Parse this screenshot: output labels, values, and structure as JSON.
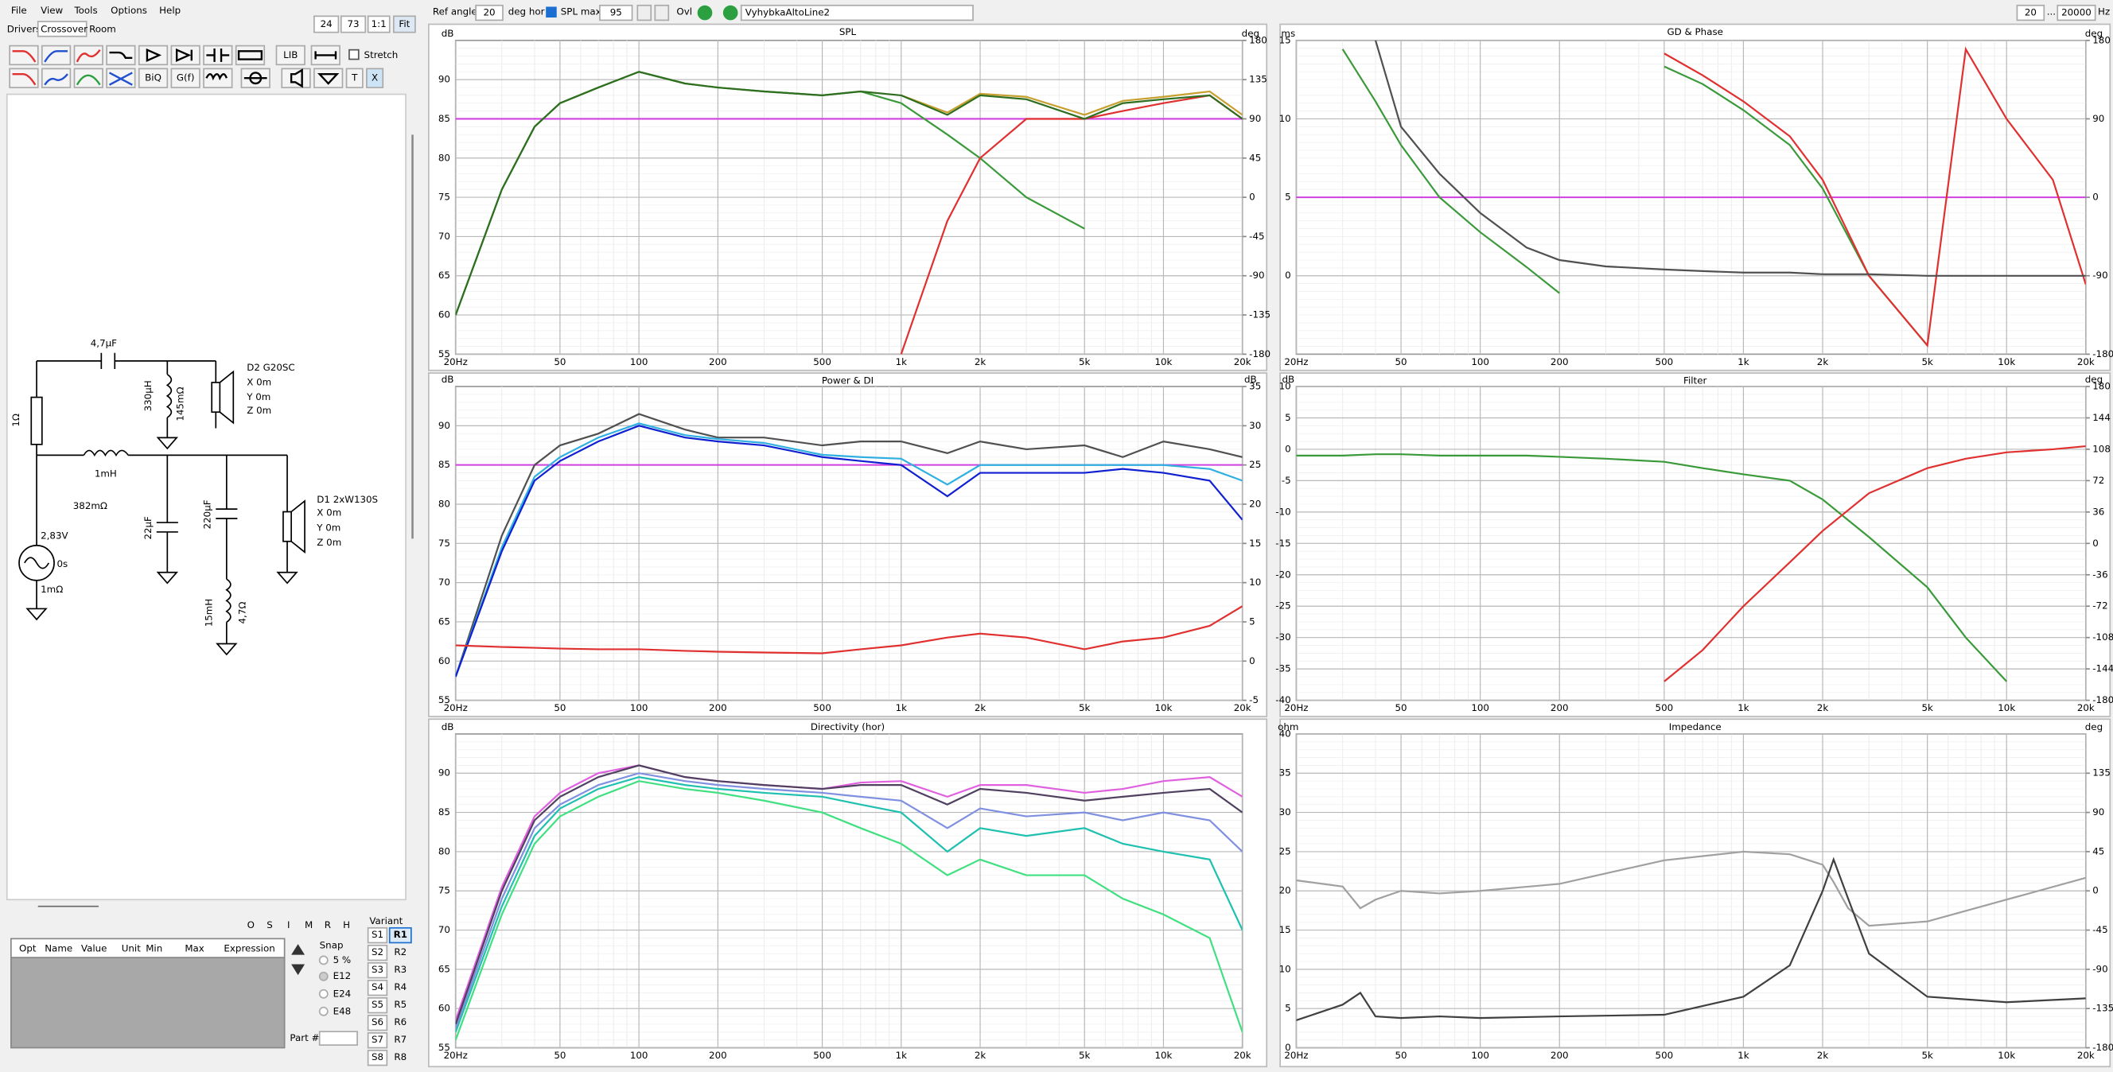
{
  "menu": [
    "File",
    "View",
    "Tools",
    "Options",
    "Help"
  ],
  "tabs": [
    "Drivers",
    "Crossover",
    "Room"
  ],
  "view_controls": [
    "24",
    "73",
    "1:1",
    "Fit"
  ],
  "settings": {
    "ref_angle_label": "Ref angle",
    "ref_angle": "20",
    "deg_hor": "deg hor",
    "spl_max_label": "SPL max",
    "spl_max": "95",
    "ovl": "Ovl",
    "project": "VyhybkaAltoLine2",
    "f_min": "20",
    "range_sep": "...",
    "f_max": "20000",
    "unit": "Hz"
  },
  "toolbar": {
    "lib": "LIB",
    "stretch": "Stretch",
    "biq": "BiQ",
    "gf": "G(f)",
    "t": "T",
    "x": "X"
  },
  "schematic": {
    "c1": "4,7µF",
    "d2": {
      "name": "D2 G20SC",
      "x": "X 0m",
      "y": "Y 0m",
      "z": "Z 0m"
    },
    "l1": "330µH",
    "l1_r": "145mΩ",
    "r1": "1Ω",
    "l2": "1mH",
    "l2_r": "382mΩ",
    "c2": "22µF",
    "c3": "220µF",
    "d1": {
      "name": "D1 2xW130S",
      "x": "X 0m",
      "y": "Y 0m",
      "z": "Z 0m"
    },
    "source_v": "2,83V",
    "source_t": "0s",
    "source_r": "1mΩ",
    "l3": "15mH",
    "l3_r": "4,7Ω"
  },
  "optimizer": {
    "buttons": [
      "O",
      "S",
      "I",
      "M",
      "R",
      "H"
    ],
    "columns": [
      "Opt",
      "Name",
      "Value",
      "Unit",
      "Min",
      "Max",
      "Expression"
    ],
    "snap": "Snap",
    "snap_options": [
      "5 %",
      "E12",
      "E24",
      "E48"
    ],
    "part": "Part #"
  },
  "variants": {
    "title": "Variant",
    "s": [
      "S1",
      "S2",
      "S3",
      "S4",
      "S5",
      "S6",
      "S7",
      "S8"
    ],
    "r": [
      "R1",
      "R2",
      "R3",
      "R4",
      "R5",
      "R6",
      "R7",
      "R8"
    ]
  },
  "charts": [
    {
      "type": "line",
      "title": "SPL",
      "y_label": "dB",
      "y2_label": "deg",
      "log_x": true,
      "xlim": [
        20,
        20000
      ],
      "xticks": [
        {
          "value": 20,
          "label": "20Hz"
        },
        50,
        100,
        200,
        500,
        {
          "value": 1000,
          "label": "1k"
        },
        {
          "value": 2000,
          "label": "2k"
        },
        {
          "value": 5000,
          "label": "5k"
        },
        {
          "value": 10000,
          "label": "10k"
        },
        {
          "value": 20000,
          "label": "20k"
        }
      ],
      "ylim": [
        55,
        95
      ],
      "yticks": [
        55,
        60,
        65,
        70,
        75,
        80,
        85,
        90
      ],
      "y2lim": [
        -180,
        180
      ],
      "y2ticks": [
        -180,
        -135,
        -90,
        -45,
        0,
        45,
        90,
        135,
        180
      ],
      "reference": {
        "value": 85,
        "color": "#d040e0"
      },
      "x": [
        20,
        30,
        40,
        50,
        70,
        100,
        150,
        200,
        300,
        500,
        700,
        1000,
        1500,
        2000,
        3000,
        5000,
        7000,
        10000,
        15000,
        20000
      ],
      "series": [
        {
          "color": "#3a9a3a",
          "values": [
            60,
            76,
            84,
            87,
            89,
            91,
            89.5,
            89,
            88.5,
            88,
            88.5,
            87,
            83,
            80,
            75,
            71,
            null,
            null,
            null,
            null
          ]
        },
        {
          "color": "#e03030",
          "values": [
            null,
            null,
            null,
            null,
            null,
            null,
            null,
            null,
            null,
            null,
            null,
            55,
            72,
            80,
            85,
            85,
            86,
            87,
            88,
            85
          ]
        },
        {
          "color": "#c8a030",
          "values": [
            null,
            null,
            null,
            null,
            null,
            null,
            null,
            null,
            null,
            null,
            null,
            88,
            85.8,
            88.2,
            87.8,
            85.5,
            87.3,
            87.8,
            88.5,
            85.5
          ]
        },
        {
          "color": "#2e6e1e",
          "values": [
            60,
            76,
            84,
            87,
            89,
            91,
            89.5,
            89,
            88.5,
            88,
            88.5,
            88,
            85.5,
            88,
            87.5,
            85,
            87,
            87.5,
            88,
            85
          ]
        }
      ]
    },
    {
      "type": "line",
      "title": "GD & Phase",
      "y_label": "ms",
      "y2_label": "deg",
      "log_x": true,
      "xlim": [
        20,
        20000
      ],
      "xticks": [
        {
          "value": 20,
          "label": "20Hz"
        },
        50,
        100,
        200,
        500,
        {
          "value": 1000,
          "label": "1k"
        },
        {
          "value": 2000,
          "label": "2k"
        },
        {
          "value": 5000,
          "label": "5k"
        },
        {
          "value": 10000,
          "label": "10k"
        },
        {
          "value": 20000,
          "label": "20k"
        }
      ],
      "ylim": [
        -5,
        15
      ],
      "yticks": [
        0,
        5,
        10,
        15
      ],
      "y2lim": [
        -180,
        180
      ],
      "y2ticks": [
        -180,
        -90,
        0,
        90,
        180
      ],
      "reference": {
        "value": 5,
        "color": "#d040e0"
      },
      "x": [
        20,
        30,
        40,
        50,
        70,
        100,
        150,
        200,
        300,
        500,
        700,
        1000,
        1500,
        2000,
        3000,
        5000,
        7000,
        10000,
        15000,
        20000
      ],
      "series": [
        {
          "color": "#3a9a3a",
          "axis": "y2",
          "values": [
            null,
            170,
            110,
            60,
            0,
            -40,
            -80,
            -110,
            null,
            150,
            130,
            100,
            60,
            10,
            -90,
            -170,
            null,
            null,
            null,
            null
          ]
        },
        {
          "color": "#e03030",
          "axis": "y2",
          "values": [
            null,
            null,
            null,
            null,
            null,
            null,
            null,
            null,
            null,
            165,
            140,
            110,
            70,
            20,
            -90,
            -170,
            170,
            90,
            20,
            -100
          ]
        },
        {
          "color": "#505050",
          "values": [
            null,
            null,
            15,
            9.5,
            6.5,
            4,
            1.8,
            1,
            0.6,
            0.4,
            0.3,
            0.2,
            0.2,
            0.1,
            0.1,
            0,
            0,
            0,
            0,
            0
          ]
        }
      ]
    },
    {
      "type": "line",
      "title": "Power & DI",
      "y_label": "dB",
      "y2_label": "dB",
      "log_x": true,
      "xlim": [
        20,
        20000
      ],
      "xticks": [
        {
          "value": 20,
          "label": "20Hz"
        },
        50,
        100,
        200,
        500,
        {
          "value": 1000,
          "label": "1k"
        },
        {
          "value": 2000,
          "label": "2k"
        },
        {
          "value": 5000,
          "label": "5k"
        },
        {
          "value": 10000,
          "label": "10k"
        },
        {
          "value": 20000,
          "label": "20k"
        }
      ],
      "ylim": [
        55,
        95
      ],
      "yticks": [
        55,
        60,
        65,
        70,
        75,
        80,
        85,
        90
      ],
      "y2lim": [
        -5,
        35
      ],
      "y2ticks": [
        -5,
        0,
        5,
        10,
        15,
        20,
        25,
        30,
        35
      ],
      "reference": {
        "value": 85,
        "color": "#d040e0"
      },
      "x": [
        20,
        30,
        40,
        50,
        70,
        100,
        150,
        200,
        300,
        500,
        700,
        1000,
        1500,
        2000,
        3000,
        5000,
        7000,
        10000,
        15000,
        20000
      ],
      "series": [
        {
          "color": "#505050",
          "values": [
            58,
            76,
            85,
            87.5,
            89,
            91.5,
            89.5,
            88.5,
            88.5,
            87.5,
            88,
            88,
            86.5,
            88,
            87,
            87.5,
            86,
            88,
            87,
            86
          ]
        },
        {
          "color": "#30b0e0",
          "values": [
            58,
            74.5,
            83.5,
            86,
            88.5,
            90.3,
            88.8,
            88.3,
            87.8,
            86.3,
            86,
            85.8,
            82.5,
            85,
            85,
            85,
            85,
            85,
            84.5,
            83
          ]
        },
        {
          "color": "#1020d0",
          "values": [
            58,
            74,
            83,
            85.5,
            88,
            90,
            88.5,
            88,
            87.5,
            86,
            85.5,
            85,
            81,
            84,
            84,
            84,
            84.5,
            84,
            83,
            78
          ]
        },
        {
          "color": "#e03030",
          "axis": "y2",
          "values": [
            2,
            1.8,
            1.7,
            1.6,
            1.5,
            1.5,
            1.3,
            1.2,
            1.1,
            1,
            1.5,
            2,
            3,
            3.5,
            3,
            1.5,
            2.5,
            3,
            4.5,
            7
          ]
        }
      ]
    },
    {
      "type": "line",
      "title": "Filter",
      "y_label": "dB",
      "y2_label": "deg",
      "log_x": true,
      "xlim": [
        20,
        20000
      ],
      "xticks": [
        {
          "value": 20,
          "label": "20Hz"
        },
        50,
        100,
        200,
        500,
        {
          "value": 1000,
          "label": "1k"
        },
        {
          "value": 2000,
          "label": "2k"
        },
        {
          "value": 5000,
          "label": "5k"
        },
        {
          "value": 10000,
          "label": "10k"
        },
        {
          "value": 20000,
          "label": "20k"
        }
      ],
      "ylim": [
        -40,
        10
      ],
      "yticks": [
        -40,
        -35,
        -30,
        -25,
        -20,
        -15,
        -10,
        -5,
        0,
        5,
        10
      ],
      "y2lim": [
        -180,
        180
      ],
      "y2ticks": [
        -180,
        -144,
        -108,
        -72,
        -36,
        0,
        36,
        72,
        108,
        144,
        180
      ],
      "x": [
        20,
        30,
        40,
        50,
        70,
        100,
        150,
        200,
        300,
        500,
        700,
        1000,
        1500,
        2000,
        3000,
        5000,
        7000,
        10000,
        15000,
        20000
      ],
      "series": [
        {
          "color": "#3a9a3a",
          "values": [
            -1,
            -1,
            -0.8,
            -0.8,
            -1,
            -1,
            -1,
            -1.2,
            -1.5,
            -2,
            -3,
            -4,
            -5,
            -8,
            -14,
            -22,
            -30,
            -37,
            null,
            null
          ]
        },
        {
          "color": "#e03030",
          "values": [
            null,
            null,
            null,
            null,
            null,
            null,
            null,
            null,
            null,
            -37,
            -32,
            -25,
            -18,
            -13,
            -7,
            -3,
            -1.5,
            -0.5,
            0,
            0.5
          ]
        }
      ]
    },
    {
      "type": "line",
      "title": "Directivity (hor)",
      "y_label": "dB",
      "log_x": true,
      "xlim": [
        20,
        20000
      ],
      "xticks": [
        {
          "value": 20,
          "label": "20Hz"
        },
        50,
        100,
        200,
        500,
        {
          "value": 1000,
          "label": "1k"
        },
        {
          "value": 2000,
          "label": "2k"
        },
        {
          "value": 5000,
          "label": "5k"
        },
        {
          "value": 10000,
          "label": "10k"
        },
        {
          "value": 20000,
          "label": "20k"
        }
      ],
      "ylim": [
        55,
        95
      ],
      "yticks": [
        55,
        60,
        65,
        70,
        75,
        80,
        85,
        90
      ],
      "x": [
        20,
        30,
        40,
        50,
        70,
        100,
        150,
        200,
        300,
        500,
        700,
        1000,
        1500,
        2000,
        3000,
        5000,
        7000,
        10000,
        15000,
        20000
      ],
      "series": [
        {
          "color": "#40e080",
          "values": [
            56,
            72,
            81,
            84.5,
            87,
            89,
            88,
            87.5,
            86.5,
            85,
            83,
            81,
            77,
            79,
            77,
            77,
            74,
            72,
            69,
            57
          ]
        },
        {
          "color": "#20c0b0",
          "values": [
            57,
            73,
            82,
            85.5,
            88,
            89.5,
            88.5,
            88,
            87.5,
            87,
            86,
            85,
            80,
            83,
            82,
            83,
            81,
            80,
            79,
            70
          ]
        },
        {
          "color": "#8090e0",
          "values": [
            57.5,
            74,
            83,
            86,
            88.5,
            90,
            89,
            88.5,
            88,
            87.5,
            87,
            86.5,
            83,
            85.5,
            84.5,
            85,
            84,
            85,
            84,
            80
          ]
        },
        {
          "color": "#e060e0",
          "values": [
            58.5,
            75.5,
            84.5,
            87.5,
            90,
            91,
            89.5,
            89,
            88.5,
            88,
            88.8,
            89,
            87,
            88.5,
            88.5,
            87.5,
            88,
            89,
            89.5,
            87
          ]
        },
        {
          "color": "#504060",
          "values": [
            58,
            75,
            84,
            87,
            89.5,
            91,
            89.5,
            89,
            88.5,
            88,
            88.5,
            88.5,
            86,
            88,
            87.5,
            86.5,
            87,
            87.5,
            88,
            85
          ]
        }
      ]
    },
    {
      "type": "line",
      "title": "Impedance",
      "y_label": "ohm",
      "y2_label": "deg",
      "log_x": true,
      "xlim": [
        20,
        20000
      ],
      "xticks": [
        {
          "value": 20,
          "label": "20Hz"
        },
        50,
        100,
        200,
        500,
        {
          "value": 1000,
          "label": "1k"
        },
        {
          "value": 2000,
          "label": "2k"
        },
        {
          "value": 5000,
          "label": "5k"
        },
        {
          "value": 10000,
          "label": "10k"
        },
        {
          "value": 20000,
          "label": "20k"
        }
      ],
      "ylim": [
        0,
        40
      ],
      "yticks": [
        0,
        5,
        10,
        15,
        20,
        25,
        30,
        35,
        40
      ],
      "y2lim": [
        -180,
        180
      ],
      "y2ticks": [
        -180,
        -135,
        -90,
        -45,
        0,
        45,
        90,
        135
      ],
      "x": [
        20,
        30,
        35,
        40,
        50,
        70,
        100,
        200,
        500,
        1000,
        1500,
        2000,
        2200,
        2500,
        3000,
        5000,
        10000,
        20000
      ],
      "series": [
        {
          "color": "#a0a0a0",
          "axis": "y2",
          "values": [
            12,
            5,
            -20,
            -10,
            0,
            -3,
            0,
            8,
            35,
            45,
            42,
            30,
            10,
            -20,
            -40,
            -35,
            -10,
            15
          ]
        },
        {
          "color": "#404040",
          "values": [
            3.5,
            5.5,
            7,
            4,
            3.8,
            4,
            3.8,
            4,
            4.2,
            6.5,
            10.5,
            20,
            24,
            19,
            12,
            6.5,
            5.8,
            6.3
          ]
        }
      ]
    }
  ]
}
